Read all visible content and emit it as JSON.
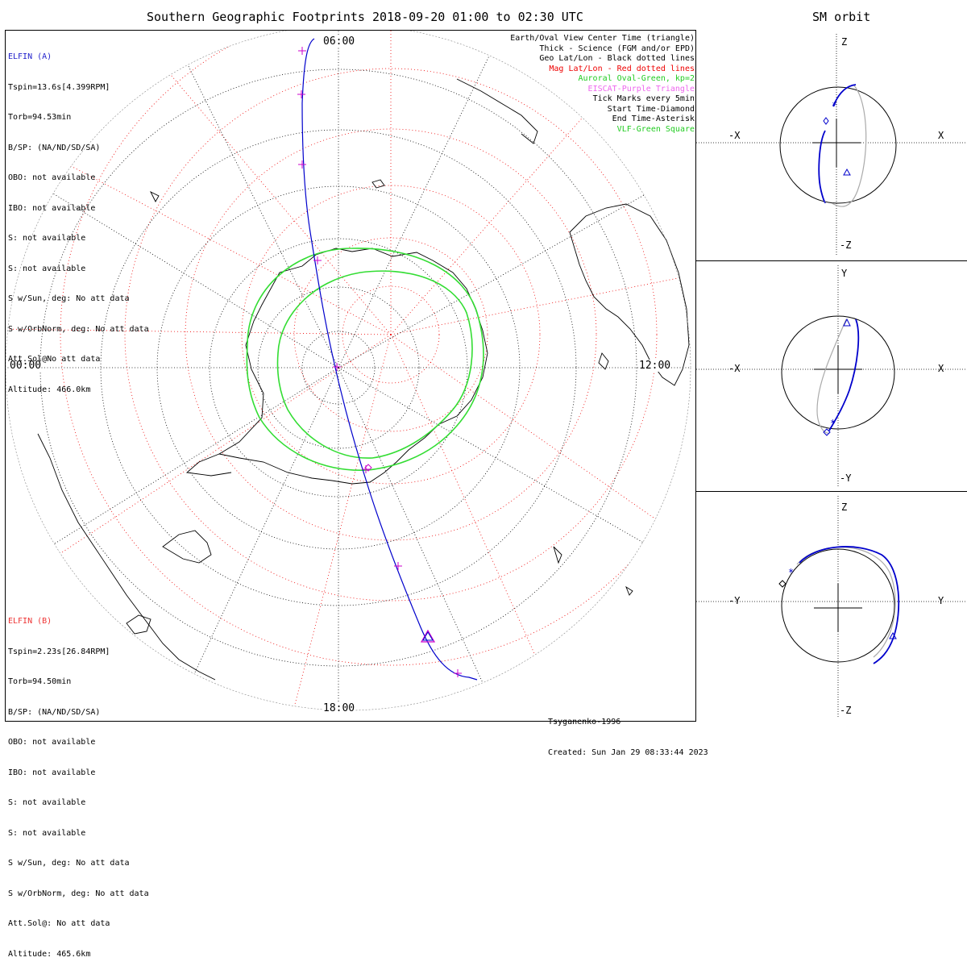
{
  "title": "Southern Geographic Footprints 2018-09-20 01:00 to 02:30 UTC",
  "sm_title": "SM orbit",
  "elfin_a": {
    "name": "ELFIN (A)",
    "lines": [
      "Tspin=13.6s[4.399RPM]",
      "Torb=94.53min",
      "B/SP: (NA/ND/SD/SA)",
      "OBO: not available",
      "IBO: not available",
      "S: not available",
      "S: not available",
      "S w/Sun, deg: No att data",
      "S w/OrbNorm, deg: No att data",
      "Att.Sol@No att data",
      "Altitude: 466.0km"
    ],
    "color": "#2222cc"
  },
  "elfin_b": {
    "name": "ELFIN (B)",
    "lines": [
      "Tspin=2.23s[26.84RPM]",
      "Torb=94.50min",
      "B/SP: (NA/ND/SD/SA)",
      "OBO: not available",
      "IBO: not available",
      "S: not available",
      "S: not available",
      "S w/Sun, deg: No att data",
      "S w/OrbNorm, deg: No att data",
      "Att.Sol@: No att data",
      "Altitude: 465.6km"
    ],
    "color": "#ee3333"
  },
  "legend": [
    {
      "text": "Earth/Oval View Center Time (triangle)",
      "color": "#000000"
    },
    {
      "text": "Thick - Science (FGM and/or EPD)",
      "color": "#000000"
    },
    {
      "text": "Geo Lat/Lon - Black dotted lines",
      "color": "#000000"
    },
    {
      "text": "Mag Lat/Lon - Red dotted lines",
      "color": "#ee0000"
    },
    {
      "text": "Auroral Oval-Green, kp=2",
      "color": "#22cc22"
    },
    {
      "text": "EISCAT-Purple Triangle",
      "color": "#ee66ee"
    },
    {
      "text": "Tick Marks every 5min",
      "color": "#000000"
    },
    {
      "text": "Start Time-Diamond",
      "color": "#000000"
    },
    {
      "text": "End Time-Asterisk",
      "color": "#000000"
    },
    {
      "text": "VLF-Green Square",
      "color": "#22cc22"
    }
  ],
  "time_labels": {
    "top": "06:00",
    "left": "00:00",
    "right": "12:00",
    "bottom": "18:00"
  },
  "footer": {
    "model": "Tsyganenko-1996",
    "created": "Created: Sun Jan 29 08:33:44 2023"
  },
  "sm_panels": [
    {
      "id": "xz",
      "up": "Z",
      "down": "-Z",
      "left": "-X",
      "right": "X"
    },
    {
      "id": "xy",
      "up": "Y",
      "down": "-Y",
      "left": "-X",
      "right": "X"
    },
    {
      "id": "yz",
      "up": "Z",
      "down": "-Z",
      "left": "-Y",
      "right": "Y"
    }
  ],
  "colors": {
    "orbit": "#0000cc",
    "grid_geo": "#000000",
    "grid_mag": "#ee0000",
    "oval": "#33dd33",
    "coast": "#000000",
    "other_orbit": "#aaaaaa"
  }
}
